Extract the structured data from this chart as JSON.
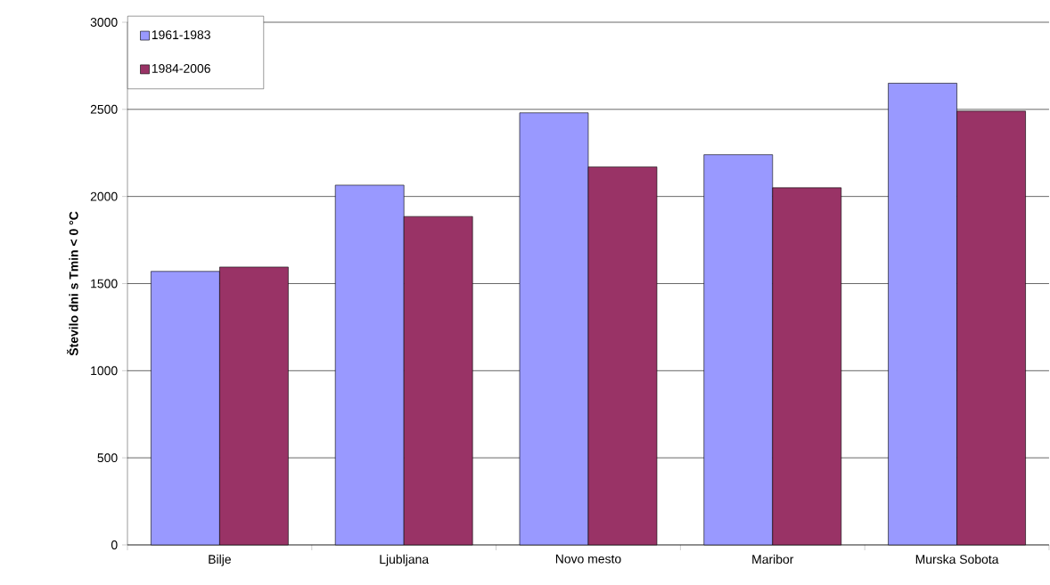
{
  "chart_data": {
    "type": "bar",
    "ylabel": "Število dni s Tmin < 0 °C",
    "categories": [
      "Bilje",
      "Ljubljana",
      "Novo mesto",
      "Maribor",
      "Murska Sobota"
    ],
    "series": [
      {
        "name": "1961-1983",
        "color": "#9999ff",
        "values": [
          1570,
          2065,
          2480,
          2240,
          2650
        ]
      },
      {
        "name": "1984-2006",
        "color": "#993366",
        "values": [
          1595,
          1885,
          2170,
          2050,
          2490
        ]
      }
    ],
    "ylim": [
      0,
      3000
    ],
    "yticks": [
      0,
      500,
      1000,
      1500,
      2000,
      2500,
      3000
    ],
    "grid": "y",
    "legend": "top left"
  }
}
